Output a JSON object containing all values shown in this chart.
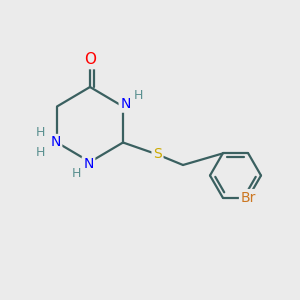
{
  "background_color": "#ebebeb",
  "bond_color": "#3a6060",
  "atom_colors": {
    "O": "#ff0000",
    "N": "#0000ff",
    "S": "#ccaa00",
    "Br": "#cc7722",
    "C": "#3a6060",
    "H": "#5a9090"
  },
  "font_size": 10,
  "lw": 1.6
}
